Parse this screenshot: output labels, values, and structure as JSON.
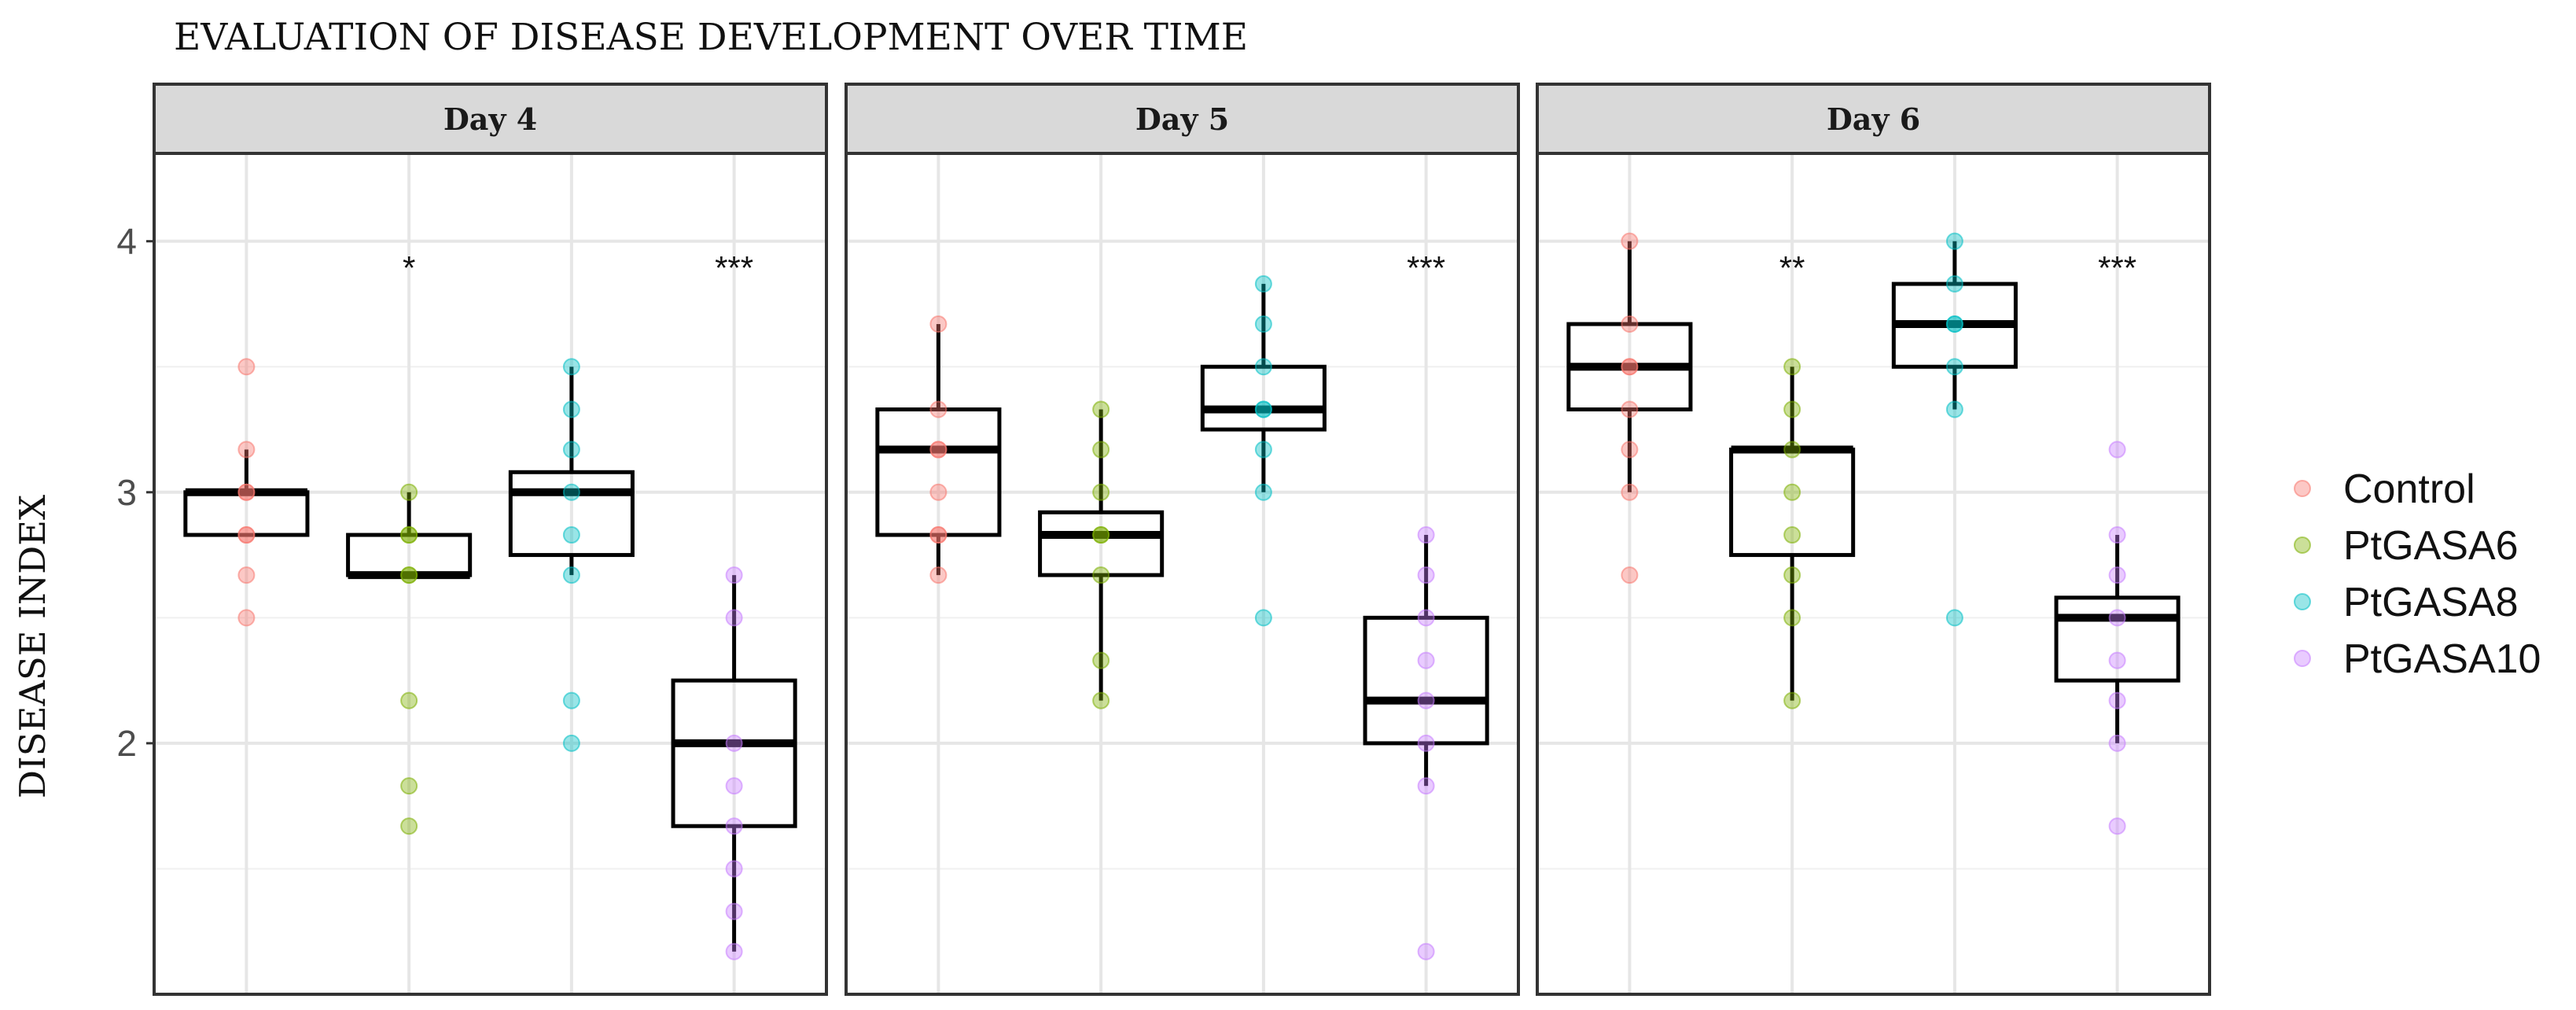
{
  "chart_data": {
    "type": "boxplot",
    "title": "EVALUATION OF DISEASE DEVELOPMENT OVER TIME",
    "ylabel": "DISEASE INDEX",
    "xlabel": "",
    "ylim": [
      1.0,
      4.35
    ],
    "yticks": [
      2,
      3,
      4
    ],
    "ytick_labels": [
      "2",
      "3",
      "4"
    ],
    "minor_gridlines": [
      1.5,
      2.5,
      3.5
    ],
    "groups": [
      "Control",
      "PtGASA6",
      "PtGASA8",
      "PtGASA10"
    ],
    "colors": {
      "Control": "#F8766D",
      "PtGASA6": "#7CAE00",
      "PtGASA8": "#00BFC4",
      "PtGASA10": "#C77CFF"
    },
    "legend": {
      "position": "right",
      "entries": [
        "Control",
        "PtGASA6",
        "PtGASA8",
        "PtGASA10"
      ]
    },
    "panels": [
      {
        "label": "Day 4",
        "boxes": [
          {
            "group": "Control",
            "min": 2.83,
            "q1": 2.83,
            "median": 3.0,
            "q3": 3.0,
            "max": 3.17,
            "points": [
              3.5,
              3.17,
              3.0,
              3.0,
              2.83,
              2.83,
              2.67,
              2.5
            ],
            "signif": ""
          },
          {
            "group": "PtGASA6",
            "min": 2.67,
            "q1": 2.67,
            "median": 2.67,
            "q3": 2.83,
            "max": 3.0,
            "points": [
              3.0,
              2.83,
              2.83,
              2.67,
              2.67,
              2.17,
              1.83,
              1.67
            ],
            "signif": "*"
          },
          {
            "group": "PtGASA8",
            "min": 2.67,
            "q1": 2.75,
            "median": 3.0,
            "q3": 3.08,
            "max": 3.5,
            "points": [
              3.5,
              3.33,
              3.17,
              3.0,
              2.83,
              2.67,
              2.17,
              2.0
            ],
            "signif": ""
          },
          {
            "group": "PtGASA10",
            "min": 1.17,
            "q1": 1.67,
            "median": 2.0,
            "q3": 2.25,
            "max": 2.67,
            "points": [
              2.67,
              2.5,
              2.0,
              1.83,
              1.67,
              1.5,
              1.33,
              1.17
            ],
            "signif": "***"
          }
        ]
      },
      {
        "label": "Day 5",
        "boxes": [
          {
            "group": "Control",
            "min": 2.67,
            "q1": 2.83,
            "median": 3.17,
            "q3": 3.33,
            "max": 3.67,
            "points": [
              3.67,
              3.33,
              3.17,
              3.17,
              3.0,
              2.83,
              2.83,
              2.67
            ],
            "signif": ""
          },
          {
            "group": "PtGASA6",
            "min": 2.17,
            "q1": 2.67,
            "median": 2.83,
            "q3": 2.92,
            "max": 3.33,
            "points": [
              3.33,
              3.17,
              3.0,
              2.83,
              2.83,
              2.67,
              2.33,
              2.17
            ],
            "signif": ""
          },
          {
            "group": "PtGASA8",
            "min": 3.0,
            "q1": 3.25,
            "median": 3.33,
            "q3": 3.5,
            "max": 3.83,
            "points": [
              3.83,
              3.67,
              3.5,
              3.33,
              3.33,
              3.17,
              3.0,
              2.5
            ],
            "signif": ""
          },
          {
            "group": "PtGASA10",
            "min": 1.83,
            "q1": 2.0,
            "median": 2.17,
            "q3": 2.5,
            "max": 2.83,
            "points": [
              2.83,
              2.67,
              2.5,
              2.33,
              2.17,
              2.0,
              1.83,
              1.17
            ],
            "signif": "***"
          }
        ]
      },
      {
        "label": "Day 6",
        "boxes": [
          {
            "group": "Control",
            "min": 3.0,
            "q1": 3.33,
            "median": 3.5,
            "q3": 3.67,
            "max": 4.0,
            "points": [
              4.0,
              3.67,
              3.5,
              3.5,
              3.33,
              3.17,
              3.0,
              2.67
            ],
            "signif": ""
          },
          {
            "group": "PtGASA6",
            "min": 2.17,
            "q1": 2.75,
            "median": 3.17,
            "q3": 3.17,
            "max": 3.5,
            "points": [
              3.5,
              3.33,
              3.17,
              3.0,
              2.83,
              2.67,
              2.5,
              2.17
            ],
            "signif": "**"
          },
          {
            "group": "PtGASA8",
            "min": 3.33,
            "q1": 3.5,
            "median": 3.67,
            "q3": 3.83,
            "max": 4.0,
            "points": [
              4.0,
              3.83,
              3.67,
              3.67,
              3.5,
              3.33,
              2.5
            ],
            "signif": ""
          },
          {
            "group": "PtGASA10",
            "min": 2.0,
            "q1": 2.25,
            "median": 2.5,
            "q3": 2.58,
            "max": 2.83,
            "points": [
              3.17,
              2.83,
              2.67,
              2.5,
              2.33,
              2.17,
              2.0,
              1.67
            ],
            "signif": "***"
          }
        ]
      }
    ]
  }
}
